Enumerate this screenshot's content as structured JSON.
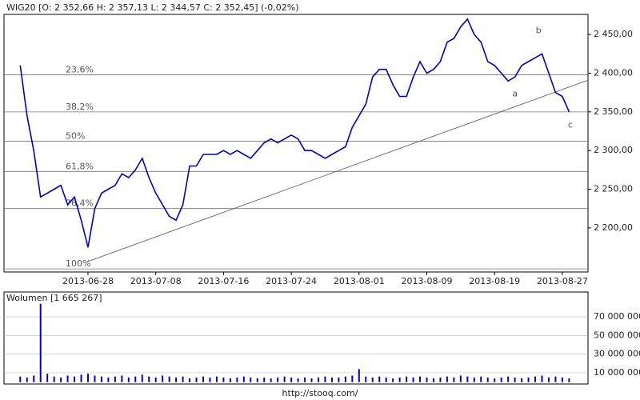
{
  "chart_data": [
    {
      "type": "line",
      "title": "WIG20 [O: 2 352,66  H: 2 357,13  L: 2 344,57  C: 2 352,45] (-0,02%)",
      "categories": [
        null,
        null,
        null,
        null,
        null,
        null,
        null,
        null,
        null,
        null,
        "2013-06-28",
        null,
        null,
        null,
        null,
        null,
        null,
        null,
        null,
        null,
        "2013-07-08",
        null,
        null,
        null,
        null,
        null,
        null,
        null,
        null,
        null,
        "2013-07-16",
        null,
        null,
        null,
        null,
        null,
        null,
        null,
        null,
        null,
        "2013-07-24",
        null,
        null,
        null,
        null,
        null,
        null,
        null,
        null,
        null,
        "2013-08-01",
        null,
        null,
        null,
        null,
        null,
        null,
        null,
        null,
        null,
        "2013-08-09",
        null,
        null,
        null,
        null,
        null,
        null,
        null,
        null,
        null,
        "2013-08-19",
        null,
        null,
        null,
        null,
        null,
        null,
        null,
        null,
        null,
        "2013-08-27",
        null
      ],
      "values": [
        2410,
        2345,
        2300,
        2240,
        2245,
        2250,
        2255,
        2230,
        2240,
        2210,
        2175,
        2225,
        2245,
        2250,
        2255,
        2270,
        2265,
        2275,
        2290,
        2265,
        2245,
        2230,
        2215,
        2210,
        2230,
        2280,
        2280,
        2295,
        2295,
        2295,
        2300,
        2295,
        2300,
        2295,
        2290,
        2300,
        2310,
        2315,
        2310,
        2315,
        2320,
        2315,
        2300,
        2300,
        2295,
        2290,
        2295,
        2300,
        2305,
        2330,
        2345,
        2360,
        2395,
        2405,
        2405,
        2385,
        2370,
        2370,
        2395,
        2415,
        2400,
        2405,
        2415,
        2440,
        2445,
        2460,
        2470,
        2450,
        2440,
        2415,
        2410,
        2400,
        2390,
        2395,
        2410,
        2415,
        2420,
        2425,
        2400,
        2375,
        2370,
        2350
      ],
      "color": "#0000cc",
      "ylim": [
        2143,
        2476
      ],
      "yticks": [
        {
          "value": 2200,
          "label": "2 200,00"
        },
        {
          "value": 2250,
          "label": "2 250,00"
        },
        {
          "value": 2300,
          "label": "2 300,00"
        },
        {
          "value": 2350,
          "label": "2 350,00"
        },
        {
          "value": 2400,
          "label": "2 400,00"
        },
        {
          "value": 2450,
          "label": "2 450,00"
        }
      ],
      "fib_levels": [
        {
          "value": 2398,
          "label": "23,6%"
        },
        {
          "value": 2350,
          "label": "38,2%"
        },
        {
          "value": 2312,
          "label": "50%"
        },
        {
          "value": 2273,
          "label": "61,8%"
        },
        {
          "value": 2225,
          "label": "76,4%"
        },
        {
          "value": 2147,
          "label": "100%"
        }
      ],
      "trendline": {
        "x": [
          9.8,
          83.8
        ],
        "y": [
          2156,
          2391
        ]
      },
      "annotations": [
        {
          "text": "a",
          "x": 73,
          "y": 2373
        },
        {
          "text": "b",
          "x": 76.5,
          "y": 2455
        },
        {
          "text": "c",
          "x": 81.2,
          "y": 2333
        }
      ]
    },
    {
      "type": "bar",
      "title": "Wolumen [1 665 267]",
      "values": [
        6000000,
        5000000,
        7000000,
        84000000,
        9000000,
        6000000,
        5000000,
        7000000,
        6000000,
        8000000,
        9000000,
        7000000,
        6000000,
        5000000,
        6000000,
        7000000,
        5000000,
        6000000,
        8000000,
        6000000,
        5000000,
        7000000,
        6000000,
        5000000,
        6000000,
        4000000,
        5000000,
        6000000,
        5000000,
        6000000,
        5000000,
        4000000,
        5000000,
        6000000,
        5000000,
        4000000,
        5000000,
        4000000,
        5000000,
        6000000,
        5000000,
        4000000,
        5000000,
        4000000,
        5000000,
        6000000,
        5000000,
        5000000,
        6000000,
        7000000,
        14000000,
        6000000,
        5000000,
        6000000,
        5000000,
        4000000,
        5000000,
        6000000,
        5000000,
        6000000,
        5000000,
        4000000,
        5000000,
        6000000,
        5000000,
        7000000,
        6000000,
        5000000,
        6000000,
        5000000,
        4000000,
        5000000,
        6000000,
        5000000,
        4000000,
        5000000,
        6000000,
        7000000,
        5000000,
        6000000,
        5000000,
        4000000
      ],
      "color": "#0000cc",
      "ylim": [
        -2000000,
        96600000
      ],
      "yticks": [
        {
          "value": 10000000,
          "label": "10 000 000"
        },
        {
          "value": 30000000,
          "label": "30 000 000"
        },
        {
          "value": 50000000,
          "label": "50 000 000"
        },
        {
          "value": 70000000,
          "label": "70 000 000"
        }
      ]
    }
  ],
  "footer": "http://stooq.com/"
}
